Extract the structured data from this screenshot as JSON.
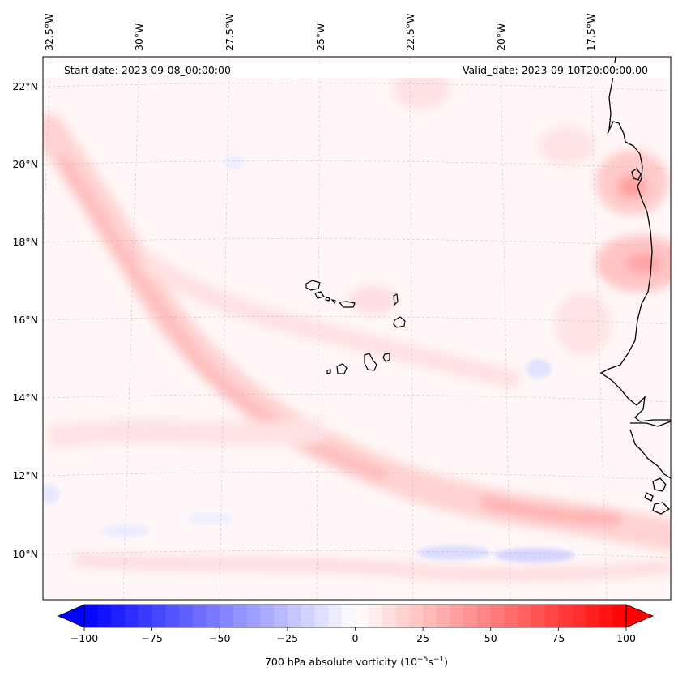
{
  "header": {
    "start_date": "Start date: 2023-09-08_00:00:00",
    "valid_date": "Valid_date: 2023-09-10T20:00:00.00"
  },
  "longitude_labels": [
    "32.5°W",
    "30°W",
    "27.5°W",
    "25°W",
    "22.5°W",
    "20°W",
    "17.5°W"
  ],
  "latitude_labels": [
    "22°N",
    "20°N",
    "18°N",
    "16°N",
    "14°N",
    "12°N",
    "10°N"
  ],
  "colorbar": {
    "min": -100,
    "max": 100,
    "ticks": [
      "−100",
      "−75",
      "−50",
      "−25",
      "0",
      "25",
      "50",
      "75",
      "100"
    ],
    "label": "700 hPa absolute vorticity (10",
    "label_exp1": "−5",
    "label_mid": "s",
    "label_exp2": "−1",
    "label_end": ")",
    "colormap": "bwr",
    "negative_color": "#0000ff",
    "zero_color": "#ffffff",
    "positive_color": "#ff0000"
  },
  "map": {
    "field": "700 hPa absolute vorticity",
    "background_color": "#fff7f7",
    "coastline_color": "#000000"
  }
}
